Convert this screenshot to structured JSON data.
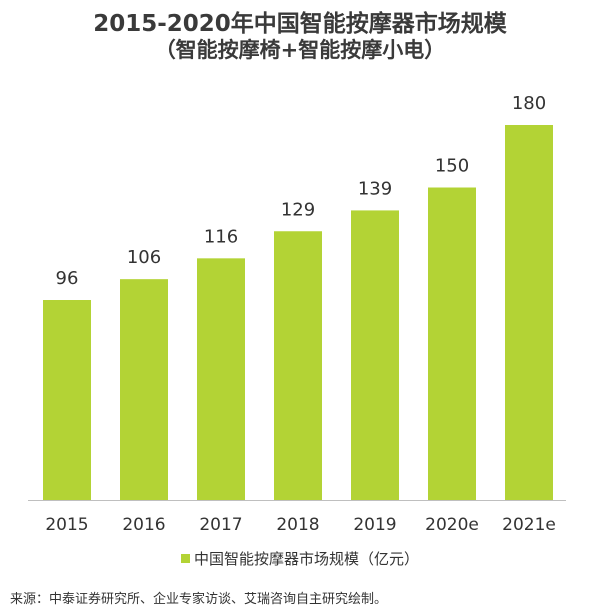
{
  "title_line1": "2015-2020年中国智能按摩器市场规模",
  "title_line2": "（智能按摩椅+智能按摩小电）",
  "legend_label": "中国智能按摩器市场规模（亿元）",
  "source": "来源：中泰证券研究所、企业专家访谈、艾瑞咨询自主研究绘制。",
  "colors": {
    "bar": "#b3d335",
    "axis": "#bfbfbf"
  },
  "chart_data": {
    "type": "bar",
    "title": "2015-2020年中国智能按摩器市场规模（智能按摩椅+智能按摩小电）",
    "categories": [
      "2015",
      "2016",
      "2017",
      "2018",
      "2019",
      "2020e",
      "2021e"
    ],
    "series": [
      {
        "name": "中国智能按摩器市场规模（亿元）",
        "values": [
          96,
          106,
          116,
          129,
          139,
          150,
          180
        ]
      }
    ],
    "data_labels": [
      "96",
      "106",
      "116",
      "129",
      "139",
      "150",
      "180"
    ],
    "ylim": [
      0,
      180
    ],
    "grid": false,
    "legend_position": "bottom"
  }
}
